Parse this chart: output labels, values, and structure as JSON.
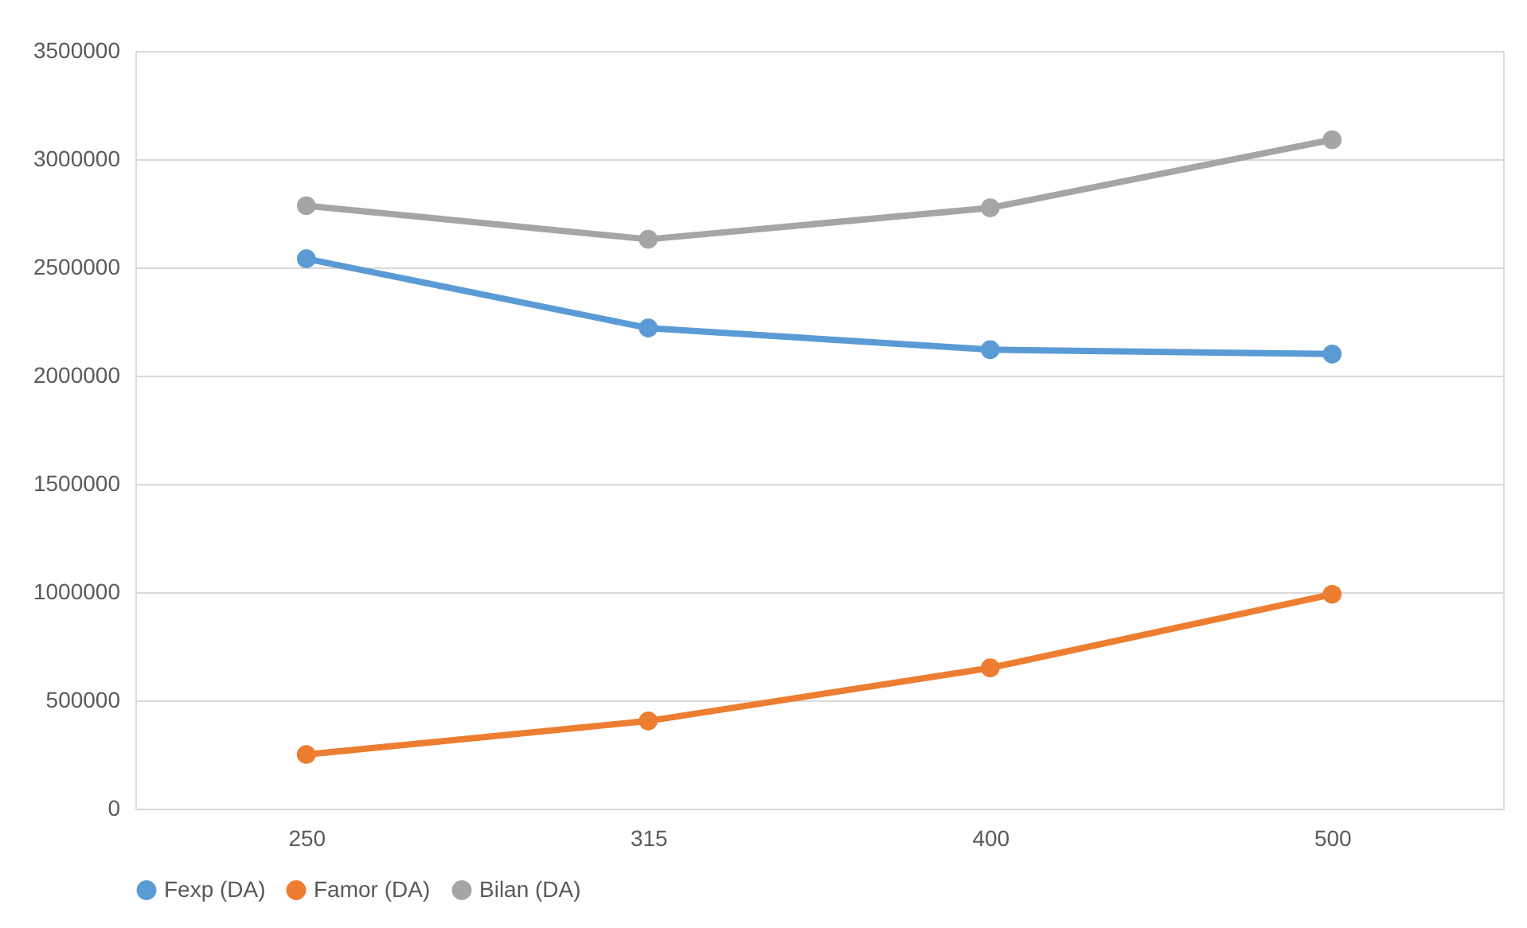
{
  "chart_data": {
    "type": "line",
    "categories": [
      "250",
      "315",
      "400",
      "500"
    ],
    "series": [
      {
        "name": "Fexp (DA)",
        "color": "#5b9bd5",
        "values": [
          2540000,
          2220000,
          2120000,
          2100000
        ]
      },
      {
        "name": "Famor (DA)",
        "color": "#ed7d31",
        "values": [
          250000,
          405000,
          650000,
          990000
        ]
      },
      {
        "name": "Bilan (DA)",
        "color": "#a5a5a5",
        "values": [
          2785000,
          2630000,
          2775000,
          3090000
        ]
      }
    ],
    "ylim": [
      0,
      3500000
    ],
    "yticks": [
      0,
      500000,
      1000000,
      1500000,
      2000000,
      2500000,
      3000000,
      3500000
    ],
    "grid": "y",
    "legend": "bottom",
    "marker": "circle",
    "line_style": "solid"
  }
}
